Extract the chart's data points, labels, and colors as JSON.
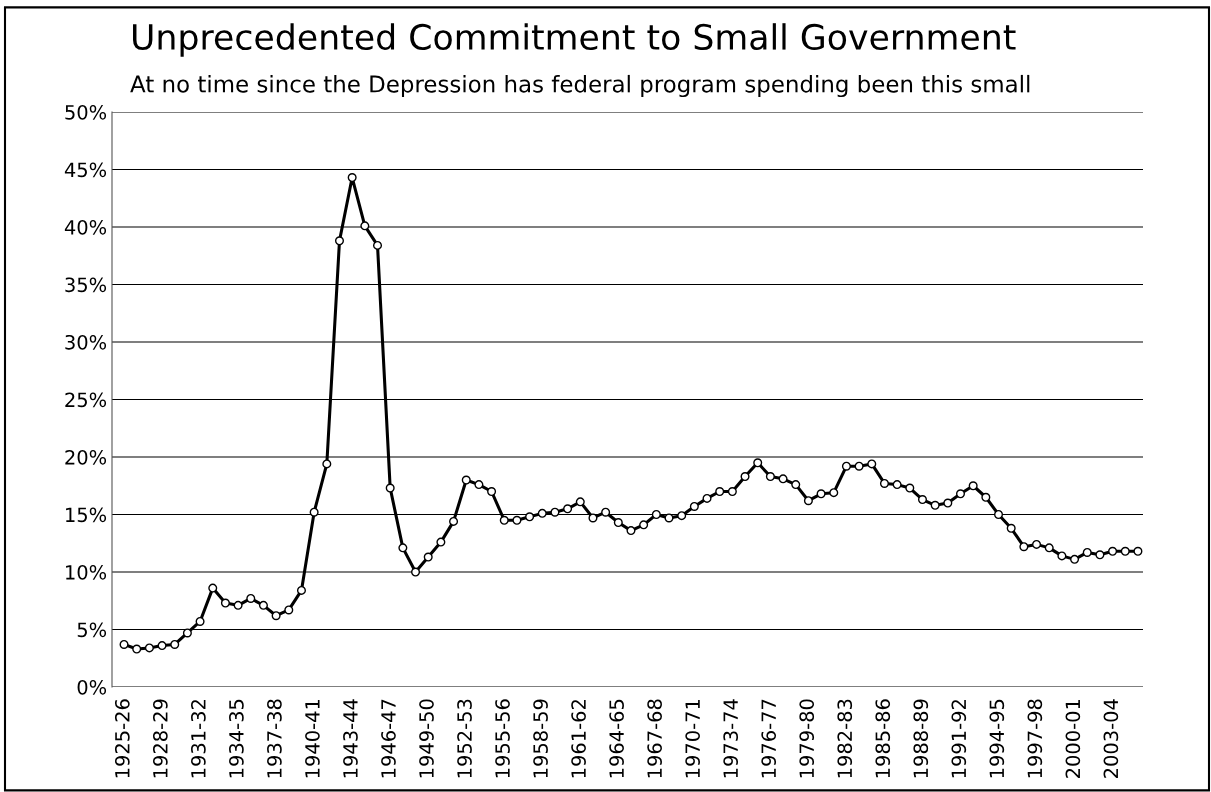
{
  "chart_data": {
    "type": "line",
    "title": "Unprecedented Commitment to Small Government",
    "subtitle": "At no time since the Depression has federal program spending been this small",
    "categories": [
      "1925-26",
      null,
      null,
      "1928-29",
      null,
      null,
      "1931-32",
      null,
      null,
      "1934-35",
      null,
      null,
      "1937-38",
      null,
      null,
      "1940-41",
      null,
      null,
      "1943-44",
      null,
      null,
      "1946-47",
      null,
      null,
      "1949-50",
      null,
      null,
      "1952-53",
      null,
      null,
      "1955-56",
      null,
      null,
      "1958-59",
      null,
      null,
      "1961-62",
      null,
      null,
      "1964-65",
      null,
      null,
      "1967-68",
      null,
      null,
      "1970-71",
      null,
      null,
      "1973-74",
      null,
      null,
      "1976-77",
      null,
      null,
      "1979-80",
      null,
      null,
      "1982-83",
      null,
      null,
      "1985-86",
      null,
      null,
      "1988-89",
      null,
      null,
      "1991-92",
      null,
      null,
      "1994-95",
      null,
      null,
      "1997-98",
      null,
      null,
      "2000-01",
      null,
      null,
      "2003-04",
      null,
      null
    ],
    "series": [
      {
        "color": "#000000",
        "values": [
          3.7,
          3.3,
          3.4,
          3.6,
          3.7,
          4.7,
          5.7,
          8.6,
          7.3,
          7.1,
          7.7,
          7.1,
          6.2,
          6.7,
          8.4,
          15.2,
          19.4,
          38.8,
          44.3,
          40.1,
          38.4,
          17.3,
          12.1,
          10.0,
          11.3,
          12.6,
          14.4,
          18.0,
          17.6,
          17.0,
          14.5,
          14.5,
          14.8,
          15.1,
          15.2,
          15.5,
          16.1,
          14.7,
          15.2,
          14.3,
          13.6,
          14.1,
          15.0,
          14.7,
          14.9,
          15.7,
          16.4,
          17.0,
          17.0,
          18.3,
          19.5,
          18.3,
          18.1,
          17.6,
          16.2,
          16.8,
          16.9,
          19.2,
          19.2,
          19.4,
          17.7,
          17.6,
          17.3,
          16.3,
          15.8,
          16.0,
          16.8,
          17.5,
          16.5,
          15.0,
          13.8,
          12.2,
          12.4,
          12.1,
          11.4,
          11.1,
          11.7,
          11.5,
          11.8,
          11.8,
          11.8
        ]
      }
    ],
    "ylim": [
      0,
      50
    ],
    "yticks": [
      {
        "value": 0,
        "label": "0%"
      },
      {
        "value": 5,
        "label": "5%"
      },
      {
        "value": 10,
        "label": "10%"
      },
      {
        "value": 15,
        "label": "15%"
      },
      {
        "value": 20,
        "label": "20%"
      },
      {
        "value": 25,
        "label": "25%"
      },
      {
        "value": 30,
        "label": "30%"
      },
      {
        "value": 35,
        "label": "35%"
      },
      {
        "value": 40,
        "label": "40%"
      },
      {
        "value": 45,
        "label": "45%"
      },
      {
        "value": 50,
        "label": "50%"
      }
    ],
    "grid": "y",
    "marker": "circle",
    "line_style": "solid",
    "legend": false
  }
}
